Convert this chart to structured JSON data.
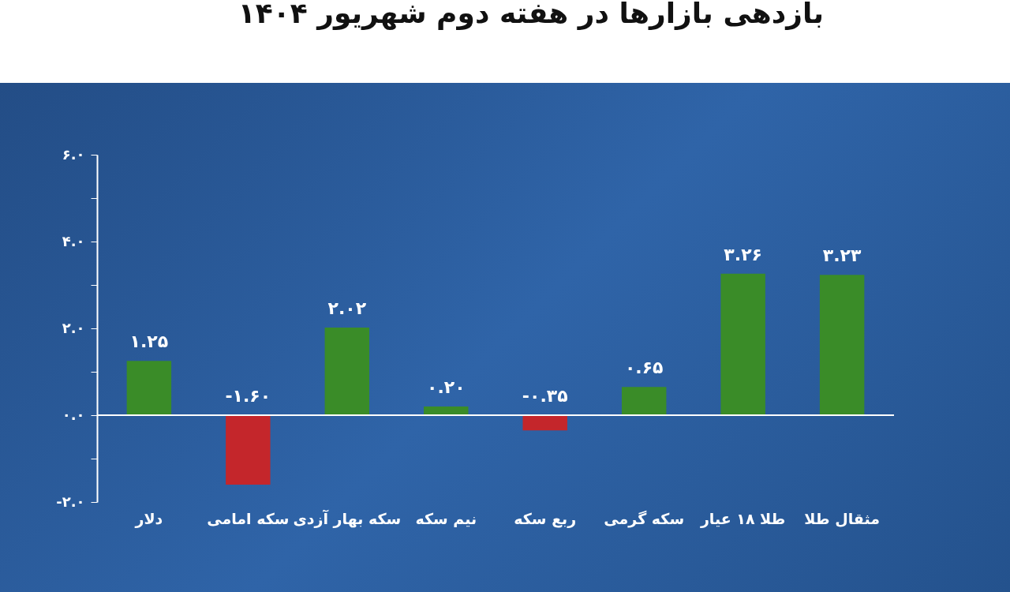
{
  "chart_data": {
    "type": "bar",
    "title": "بازدهی بازارها در هفته دوم شهریور ۱۴۰۴",
    "categories": [
      "دلار",
      "سکه امامی",
      "سکه بهار آزدی",
      "نیم سکه",
      "ربع سکه",
      "سکه گرمی",
      "طلا ۱۸ عیار",
      "مثقال طلا"
    ],
    "values": [
      1.25,
      -1.6,
      2.02,
      0.2,
      -0.35,
      0.65,
      3.26,
      3.23
    ],
    "colors": [
      "#3a8c28",
      "#c4262b",
      "#3a8c28",
      "#3a8c28",
      "#c4262b",
      "#3a8c28",
      "#3a8c28",
      "#3a8c28"
    ],
    "value_labels": [
      "۱.۲۵",
      "-۱.۶۰",
      "۲.۰۲",
      "۰.۲۰",
      "-۰.۳۵",
      "۰.۶۵",
      "۳.۲۶",
      "۳.۲۳"
    ],
    "ylim": [
      -2,
      6
    ],
    "yticks": [
      {
        "value": -2,
        "label": "-۲.۰"
      },
      {
        "value": -1,
        "label": null
      },
      {
        "value": 0,
        "label": "۰.۰"
      },
      {
        "value": 1,
        "label": null
      },
      {
        "value": 2,
        "label": "۲.۰"
      },
      {
        "value": 3,
        "label": null
      },
      {
        "value": 4,
        "label": "۴.۰"
      },
      {
        "value": 5,
        "label": null
      },
      {
        "value": 6,
        "label": "۶.۰"
      }
    ],
    "ref_lines": [
      {
        "axis": "y",
        "value": 0,
        "label": null
      }
    ],
    "grid": false
  }
}
